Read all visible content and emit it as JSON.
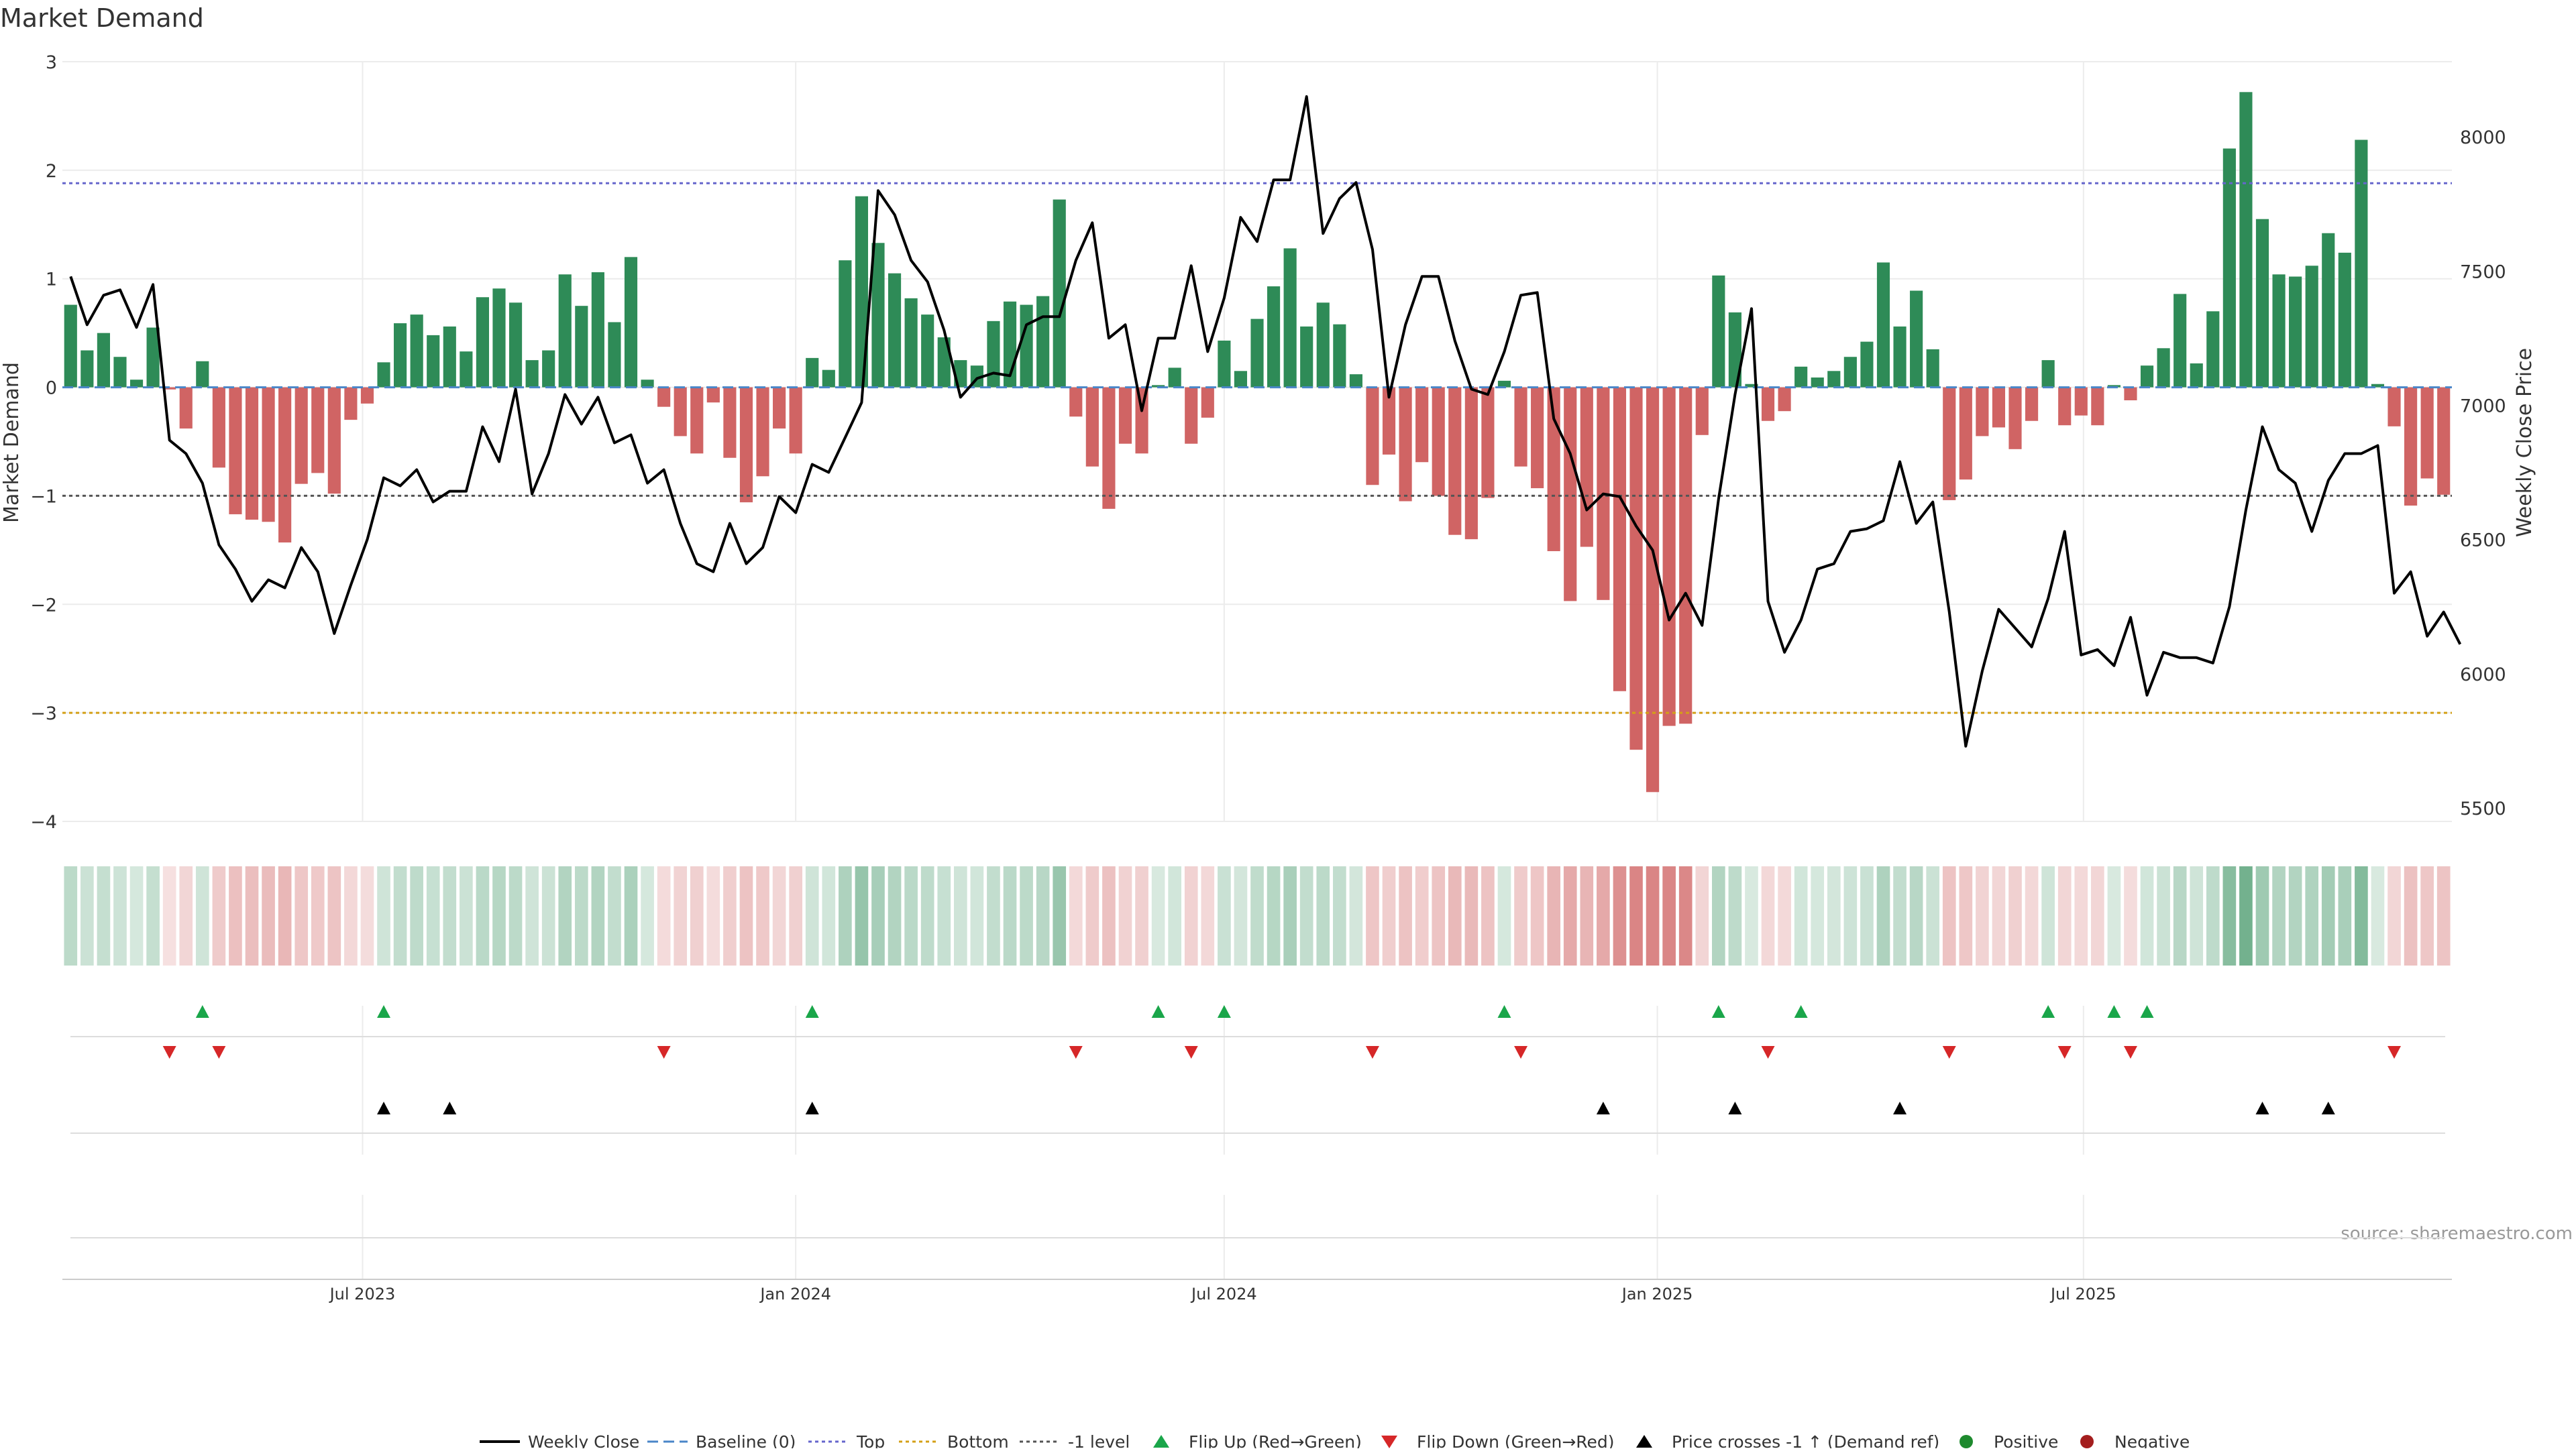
{
  "chart_data": {
    "type": "bar",
    "title": "Market Demand",
    "ylabel_left": "Market Demand",
    "ylabel_right": "Weekly Close Price",
    "source": "source: sharemaestro.com",
    "x_ticks": [
      "Jul 2023",
      "Jan 2024",
      "Jul 2024",
      "Jan 2025",
      "Jul 2025"
    ],
    "y_left_ticks": [
      "3",
      "2",
      "1",
      "0",
      "−1",
      "−2",
      "−3",
      "−4"
    ],
    "y_right_ticks": [
      "8000",
      "7500",
      "7000",
      "6500",
      "6000",
      "5500"
    ],
    "ylim_left": [
      -4,
      3
    ],
    "ylim_right": [
      5450,
      8280
    ],
    "grid": true,
    "legend_position": "bottom",
    "reference_lines": [
      {
        "name": "Top",
        "value": 1.88,
        "color": "#6666cc"
      },
      {
        "name": "Bottom",
        "value": -3.0,
        "color": "#d4a017"
      },
      {
        "name": "-1 level",
        "value": -1.0,
        "color": "#555555"
      }
    ],
    "colors": {
      "positive": "#2e8b57",
      "negative": "#cd5c5c",
      "line": "#000000",
      "flip_up": "#1aa64a",
      "flip_down": "#d62728",
      "price_cross": "#000000"
    },
    "weeks": [
      "2023-02-27",
      "2023-03-06",
      "2023-03-13",
      "2023-03-20",
      "2023-03-27",
      "2023-04-03",
      "2023-04-10",
      "2023-04-17",
      "2023-04-24",
      "2023-05-01",
      "2023-05-08",
      "2023-05-15",
      "2023-05-22",
      "2023-05-29",
      "2023-06-05",
      "2023-06-12",
      "2023-06-19",
      "2023-06-26",
      "2023-07-03",
      "2023-07-10",
      "2023-07-17",
      "2023-07-24",
      "2023-07-31",
      "2023-08-07",
      "2023-08-14",
      "2023-08-21",
      "2023-08-28",
      "2023-09-04",
      "2023-09-11",
      "2023-09-18",
      "2023-09-25",
      "2023-10-02",
      "2023-10-09",
      "2023-10-16",
      "2023-10-23",
      "2023-10-30",
      "2023-11-06",
      "2023-11-13",
      "2023-11-20",
      "2023-11-27",
      "2023-12-04",
      "2023-12-11",
      "2023-12-18",
      "2023-12-25",
      "2024-01-01",
      "2024-01-08",
      "2024-01-15",
      "2024-01-22",
      "2024-01-29",
      "2024-02-05",
      "2024-02-12",
      "2024-02-19",
      "2024-02-26",
      "2024-03-04",
      "2024-03-11",
      "2024-03-18",
      "2024-03-25",
      "2024-04-01",
      "2024-04-08",
      "2024-04-15",
      "2024-04-22",
      "2024-04-29",
      "2024-05-06",
      "2024-05-13",
      "2024-05-20",
      "2024-05-27",
      "2024-06-03",
      "2024-06-10",
      "2024-06-17",
      "2024-06-24",
      "2024-07-01",
      "2024-07-08",
      "2024-07-15",
      "2024-07-22",
      "2024-07-29",
      "2024-08-05",
      "2024-08-12",
      "2024-08-19",
      "2024-08-26",
      "2024-09-02",
      "2024-09-09",
      "2024-09-16",
      "2024-09-23",
      "2024-09-30",
      "2024-10-07",
      "2024-10-14",
      "2024-10-21",
      "2024-10-28",
      "2024-11-04",
      "2024-11-11",
      "2024-11-18",
      "2024-11-25",
      "2024-12-02",
      "2024-12-09",
      "2024-12-16",
      "2024-12-23",
      "2024-12-30",
      "2025-01-06",
      "2025-01-13",
      "2025-01-20",
      "2025-01-27",
      "2025-02-03",
      "2025-02-10",
      "2025-02-17",
      "2025-02-24",
      "2025-03-03",
      "2025-03-10",
      "2025-03-17",
      "2025-03-24",
      "2025-03-31",
      "2025-04-07",
      "2025-04-14",
      "2025-04-21",
      "2025-04-28",
      "2025-05-05",
      "2025-05-12",
      "2025-05-19",
      "2025-05-26",
      "2025-06-02",
      "2025-06-09",
      "2025-06-16",
      "2025-06-23",
      "2025-06-30",
      "2025-07-07",
      "2025-07-14",
      "2025-07-21",
      "2025-07-28",
      "2025-08-04",
      "2025-08-11",
      "2025-08-18",
      "2025-08-25",
      "2025-09-01",
      "2025-09-08",
      "2025-09-15",
      "2025-09-22",
      "2025-09-29",
      "2025-10-06",
      "2025-10-13",
      "2025-10-20",
      "2025-10-27",
      "2025-11-03",
      "2025-11-10",
      "2025-11-17",
      "2025-11-24"
    ],
    "demand": [
      0.76,
      0.34,
      0.5,
      0.28,
      0.07,
      0.55,
      -0.02,
      -0.38,
      0.24,
      -0.74,
      -1.17,
      -1.22,
      -1.24,
      -1.43,
      -0.89,
      -0.79,
      -0.98,
      -0.3,
      -0.15,
      0.23,
      0.59,
      0.67,
      0.48,
      0.56,
      0.33,
      0.83,
      0.91,
      0.78,
      0.25,
      0.34,
      1.04,
      0.75,
      1.06,
      0.6,
      1.2,
      0.07,
      -0.18,
      -0.45,
      -0.61,
      -0.14,
      -0.65,
      -1.06,
      -0.82,
      -0.38,
      -0.61,
      0.27,
      0.16,
      1.17,
      1.76,
      1.33,
      1.05,
      0.82,
      0.67,
      0.46,
      0.25,
      0.2,
      0.61,
      0.79,
      0.76,
      0.84,
      1.73,
      -0.27,
      -0.73,
      -1.12,
      -0.52,
      -0.61,
      0.02,
      0.18,
      -0.52,
      -0.28,
      0.43,
      0.15,
      0.63,
      0.93,
      1.28,
      0.56,
      0.78,
      0.58,
      0.12,
      -0.9,
      -0.62,
      -1.05,
      -0.69,
      -1.0,
      -1.36,
      -1.4,
      -1.02,
      0.06,
      -0.73,
      -0.93,
      -1.51,
      -1.97,
      -1.47,
      -1.96,
      -2.8,
      -3.34,
      -3.73,
      -3.12,
      -3.1,
      -0.44,
      1.03,
      0.69,
      0.03,
      -0.31,
      -0.22,
      0.19,
      0.09,
      0.15,
      0.28,
      0.42,
      1.15,
      0.56,
      0.89,
      0.35,
      -1.04,
      -0.85,
      -0.45,
      -0.37,
      -0.57,
      -0.31,
      0.25,
      -0.35,
      -0.26,
      -0.35,
      0.02,
      -0.12,
      0.2,
      0.36,
      0.86,
      0.22,
      0.7,
      2.2,
      2.72,
      1.55,
      1.04,
      1.02,
      1.12,
      1.42,
      1.24,
      2.28,
      0.03,
      -0.36,
      -1.09,
      -0.84,
      -0.99
    ],
    "weekly_close": [
      7480,
      7300,
      7410,
      7430,
      7290,
      7450,
      6870,
      6820,
      6710,
      6480,
      6390,
      6270,
      6350,
      6320,
      6470,
      6380,
      6150,
      6330,
      6500,
      6730,
      6700,
      6760,
      6640,
      6680,
      6680,
      6920,
      6790,
      7060,
      6670,
      6820,
      7040,
      6930,
      7030,
      6860,
      6890,
      6710,
      6760,
      6560,
      6410,
      6380,
      6560,
      6410,
      6470,
      6660,
      6600,
      6780,
      6750,
      6880,
      7010,
      7800,
      7710,
      7540,
      7460,
      7280,
      7030,
      7100,
      7120,
      7110,
      7300,
      7330,
      7330,
      7540,
      7680,
      7250,
      7300,
      6980,
      7250,
      7250,
      7520,
      7200,
      7400,
      7700,
      7610,
      7840,
      7840,
      8150,
      7640,
      7770,
      7830,
      7580,
      7030,
      7300,
      7480,
      7480,
      7240,
      7060,
      7040,
      7200,
      7410,
      7420,
      6950,
      6820,
      6610,
      6670,
      6660,
      6550,
      6460,
      6200,
      6300,
      6180,
      6650,
      7040,
      7360,
      6270,
      6080,
      6200,
      6390,
      6410,
      6530,
      6540,
      6570,
      6790,
      6560,
      6640,
      6230,
      5730,
      6010,
      6240,
      6170,
      6100,
      6280,
      6530,
      6070,
      6090,
      6030,
      6210,
      5920,
      6080,
      6060,
      6060,
      6040,
      6250,
      6610,
      6920,
      6760,
      6710,
      6530,
      6720,
      6820,
      6820,
      6850,
      6300,
      6380,
      6140,
      6230,
      6110
    ]
  },
  "legend": {
    "weekly_close": "Weekly Close",
    "baseline": "Baseline (0)",
    "top": "Top",
    "bottom": "Bottom",
    "minus1": "-1 level",
    "flip_up": "Flip Up (Red→Green)",
    "flip_down": "Flip Down (Green→Red)",
    "price_cross": "Price crosses -1 ↑ (Demand ref)",
    "positive": "Positive",
    "negative": "Negative"
  }
}
